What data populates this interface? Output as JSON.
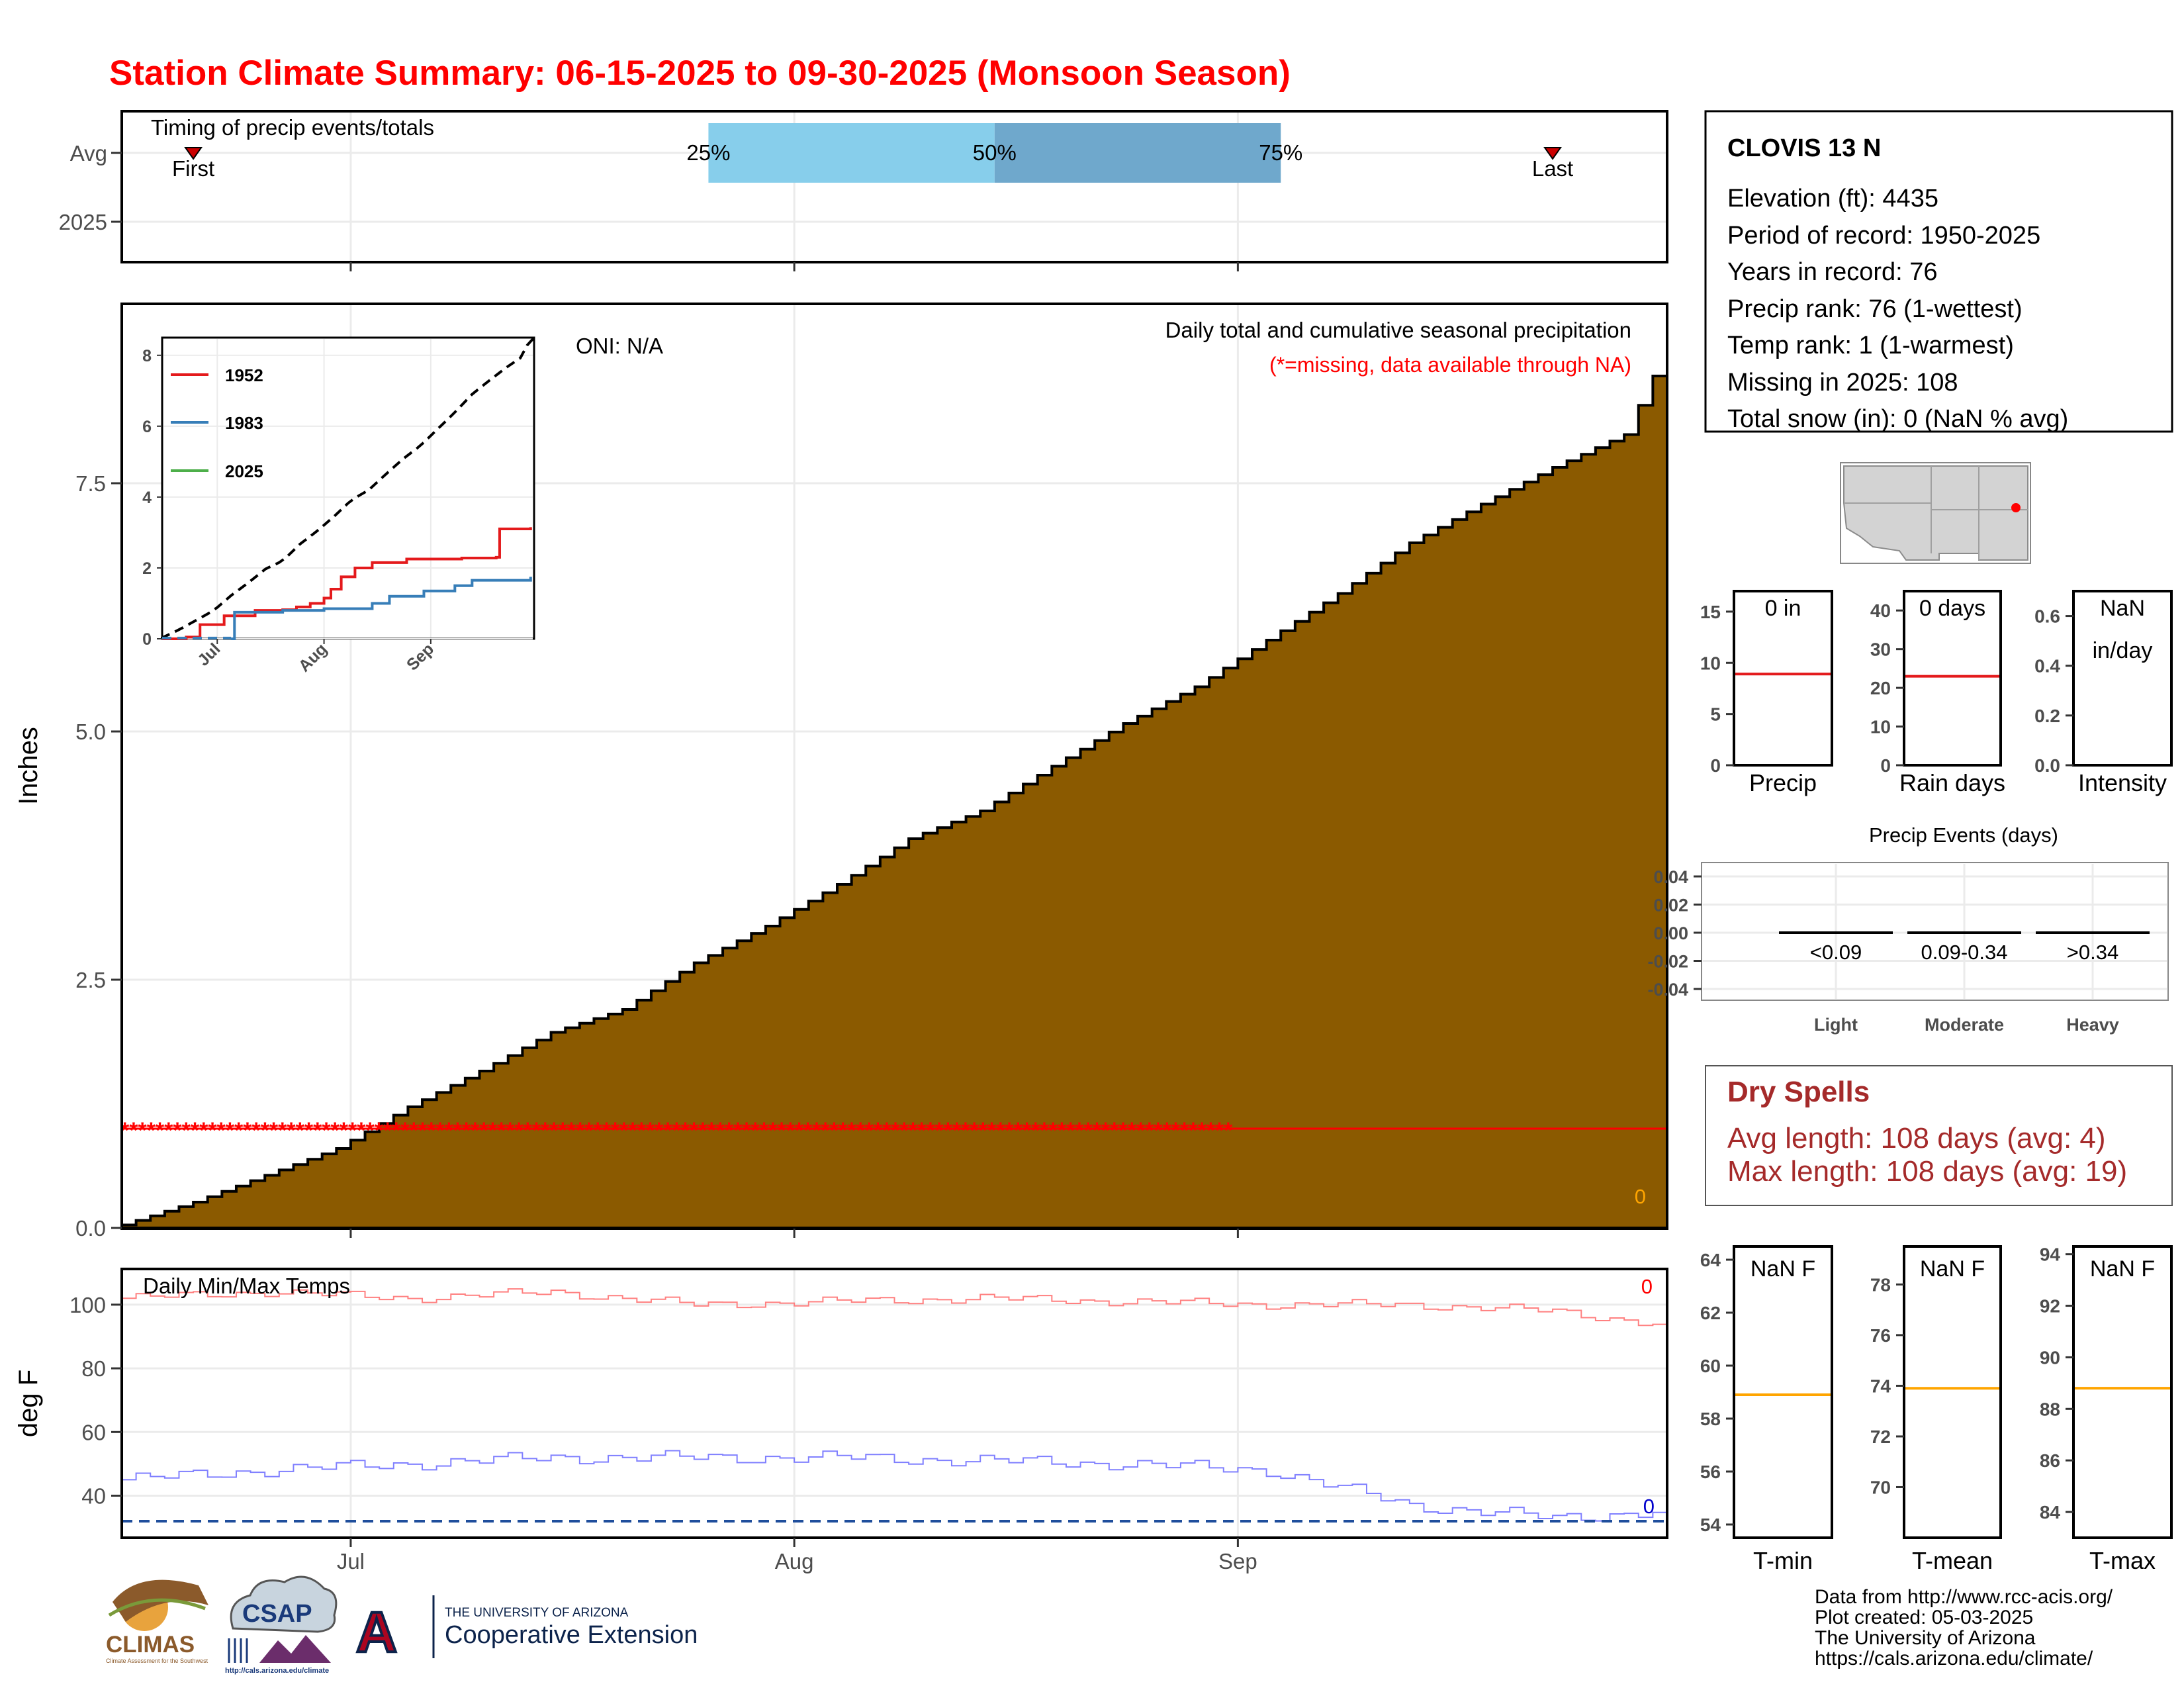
{
  "title": "Station Climate Summary: 06-15-2025 to 09-30-2025 (Monsoon Season)",
  "timing": {
    "label": "Timing of precip events/totals",
    "rows": [
      "Avg",
      "2025"
    ],
    "first_label": "First",
    "last_label": "Last",
    "pct_25": "25%",
    "pct_50": "50%",
    "pct_75": "75%",
    "first_date": "2025-06-20",
    "p25_date": "2025-07-26",
    "p50_date": "2025-08-15",
    "p75_date": "2025-09-04",
    "last_date": "2025-09-23"
  },
  "x_axis": {
    "ticks": [
      {
        "label": "Jul",
        "date": "2025-07-01"
      },
      {
        "label": "Aug",
        "date": "2025-08-01"
      },
      {
        "label": "Sep",
        "date": "2025-09-01"
      }
    ],
    "start": "2025-06-15",
    "end": "2025-09-30"
  },
  "precip_panel": {
    "ylabel": "Inches",
    "ylim": [
      0,
      9.3
    ],
    "yticks": [
      "0.0",
      "2.5",
      "5.0",
      "7.5"
    ],
    "title": "Daily total and cumulative seasonal precipitation",
    "note": "(*=missing, data available through NA)",
    "oni": "ONI: N/A",
    "count_label": "0",
    "missing_level": 1.0
  },
  "inset": {
    "ylim": [
      0,
      8.5
    ],
    "yticks": [
      "0",
      "2",
      "4",
      "6",
      "8"
    ],
    "xticks": [
      "Jul",
      "Aug",
      "Sep"
    ],
    "legend": [
      {
        "year": "1952",
        "color": "#e41a1c"
      },
      {
        "year": "1983",
        "color": "#377eb8"
      },
      {
        "year": "2025",
        "color": "#4daf4a"
      }
    ]
  },
  "temp_panel": {
    "ylabel": "deg F",
    "title": "Daily Min/Max Temps",
    "ylim": [
      27,
      111
    ],
    "yticks": [
      "40",
      "60",
      "80",
      "100"
    ],
    "max_count": "0",
    "min_count": "0",
    "freeze_level": 32
  },
  "station": {
    "name": "CLOVIS 13 N",
    "lines": [
      "Elevation (ft): 4435",
      "Period of record: 1950-2025",
      "Years in record: 76",
      "Precip rank: 76 (1-wettest)",
      "Temp rank: 1 (1-warmest)",
      "Missing in 2025: 108",
      "Total snow (in): 0 (NaN % avg)"
    ]
  },
  "mini_precip": [
    {
      "label": "0 in",
      "label2": "",
      "xlabel": "Precip",
      "ylim": [
        0,
        17
      ],
      "yticks": [
        "0",
        "5",
        "10",
        "15"
      ],
      "line": 8.9,
      "line_color": "#e41a1c"
    },
    {
      "label": "0 days",
      "label2": "",
      "xlabel": "Rain days",
      "ylim": [
        0,
        45
      ],
      "yticks": [
        "0",
        "10",
        "20",
        "30",
        "40"
      ],
      "line": 23,
      "line_color": "#e41a1c"
    },
    {
      "label": "NaN",
      "label2": "in/day",
      "xlabel": "Intensity",
      "ylim": [
        0,
        0.7
      ],
      "yticks": [
        "0.0",
        "0.2",
        "0.4",
        "0.6"
      ],
      "line": null,
      "line_color": "#e41a1c"
    }
  ],
  "events": {
    "title": "Precip Events (days)",
    "yticks": [
      "0.04",
      "0.02",
      "0.00",
      "-0.02",
      "-0.04"
    ],
    "categories": [
      {
        "range": "<0.09",
        "name": "Light"
      },
      {
        "range": "0.09-0.34",
        "name": "Moderate"
      },
      {
        "range": ">0.34",
        "name": "Heavy"
      }
    ]
  },
  "dry_spells": {
    "title": "Dry Spells",
    "avg": "Avg length: 108 days (avg: 4)",
    "max": "Max length: 108 days (avg: 19)"
  },
  "mini_temp": [
    {
      "label": "NaN F",
      "xlabel": "T-min",
      "ylim": [
        53.5,
        64.5
      ],
      "yticks": [
        "54",
        "56",
        "58",
        "60",
        "62",
        "64"
      ],
      "line": 58.9
    },
    {
      "label": "NaN F",
      "xlabel": "T-mean",
      "ylim": [
        68,
        79.5
      ],
      "yticks": [
        "70",
        "72",
        "74",
        "76",
        "78"
      ],
      "line": 73.9
    },
    {
      "label": "NaN F",
      "xlabel": "T-max",
      "ylim": [
        83,
        94.3
      ],
      "yticks": [
        "84",
        "86",
        "88",
        "90",
        "92",
        "94"
      ],
      "line": 88.8
    }
  ],
  "logos": {
    "climas": "CLIMAS",
    "climas_sub": "Climate Assessment for the Southwest",
    "csap": "CSAP",
    "csap_url": "http://cals.arizona.edu/climate",
    "ua_small": "THE UNIVERSITY OF ARIZONA",
    "ua_big": "Cooperative Extension",
    "ua_letter": "A"
  },
  "footer": [
    "Data from http://www.rcc-acis.org/",
    "Plot created: 05-03-2025",
    "The University of Arizona",
    "https://cals.arizona.edu/climate/"
  ],
  "colors": {
    "title": "#ff0000",
    "fill": "#8b5a00",
    "missing": "#ff0000",
    "tmax": "#ff8080",
    "tmin": "#8080ff",
    "freeze": "#1f4e9c",
    "q_light": "#87ceeb",
    "q_dark": "#6fa8cc",
    "dry_spells": "#a52a2a",
    "tline": "#ffa500",
    "count_orange": "#ffa500"
  },
  "chart_data": [
    {
      "type": "area",
      "title": "Daily total and cumulative seasonal precipitation",
      "ylabel": "Inches",
      "ylim": [
        0,
        9.3
      ],
      "series": [
        {
          "x": [
            "2025-06-15",
            "2025-06-20",
            "2025-06-25",
            "2025-06-30",
            "2025-07-05",
            "2025-07-10",
            "2025-07-15",
            "2025-07-20",
            "2025-07-25",
            "2025-07-30",
            "2025-08-04",
            "2025-08-09",
            "2025-08-14",
            "2025-08-19",
            "2025-08-24",
            "2025-08-29",
            "2025-09-03",
            "2025-09-08",
            "2025-09-13",
            "2025-09-18",
            "2025-09-23",
            "2025-09-28",
            "2025-09-30"
          ],
          "values": [
            0.03,
            0.26,
            0.53,
            0.8,
            1.22,
            1.58,
            1.97,
            2.2,
            2.67,
            3.04,
            3.46,
            3.92,
            4.2,
            4.65,
            5.08,
            5.45,
            5.92,
            6.39,
            6.9,
            7.29,
            7.66,
            7.99,
            8.58
          ]
        }
      ]
    },
    {
      "type": "line",
      "ylim": [
        0,
        8.5
      ],
      "series": [
        {
          "name": "1952",
          "x": [
            "2025-06-15",
            "2025-06-22",
            "2025-06-26",
            "2025-07-03",
            "2025-07-12",
            "2025-07-20",
            "2025-07-24",
            "2025-07-28",
            "2025-08-01",
            "2025-08-03",
            "2025-08-06",
            "2025-08-10",
            "2025-08-15",
            "2025-08-25",
            "2025-09-10",
            "2025-09-20",
            "2025-09-21",
            "2025-09-30"
          ],
          "values": [
            0.0,
            0.05,
            0.4,
            0.65,
            0.8,
            0.82,
            0.9,
            1.0,
            1.15,
            1.4,
            1.75,
            2.0,
            2.15,
            2.25,
            2.28,
            2.3,
            3.1,
            3.15
          ]
        },
        {
          "name": "1983",
          "x": [
            "2025-06-15",
            "2025-07-05",
            "2025-07-06",
            "2025-07-20",
            "2025-08-01",
            "2025-08-15",
            "2025-08-20",
            "2025-08-30",
            "2025-09-08",
            "2025-09-13",
            "2025-09-30"
          ],
          "values": [
            0.0,
            0.0,
            0.75,
            0.8,
            0.85,
            1.0,
            1.2,
            1.35,
            1.5,
            1.65,
            1.75
          ]
        },
        {
          "name": "2025",
          "x": [],
          "values": []
        }
      ]
    },
    {
      "type": "line",
      "title": "Daily Min/Max Temps",
      "ylabel": "deg F",
      "ylim": [
        27,
        111
      ],
      "series": [
        {
          "x": [
            "2025-06-15",
            "2025-06-25",
            "2025-07-05",
            "2025-07-15",
            "2025-07-25",
            "2025-08-04",
            "2025-08-14",
            "2025-08-24",
            "2025-09-03",
            "2025-09-13",
            "2025-09-23",
            "2025-09-30"
          ],
          "values": [
            102,
            104,
            102,
            104,
            100,
            101,
            102,
            101,
            100,
            100,
            98,
            94
          ]
        },
        {
          "x": [
            "2025-06-15",
            "2025-06-25",
            "2025-07-05",
            "2025-07-15",
            "2025-07-25",
            "2025-08-04",
            "2025-08-14",
            "2025-08-24",
            "2025-09-03",
            "2025-09-13",
            "2025-09-23",
            "2025-09-30"
          ],
          "values": [
            45,
            48,
            50,
            52,
            52,
            52,
            51,
            50,
            48,
            37,
            33,
            35
          ]
        }
      ]
    },
    {
      "type": "bar",
      "title": "Precip Events (days)",
      "categories": [
        "<0.09",
        "0.09-0.34",
        ">0.34"
      ],
      "values": [
        0,
        0,
        0
      ]
    }
  ]
}
